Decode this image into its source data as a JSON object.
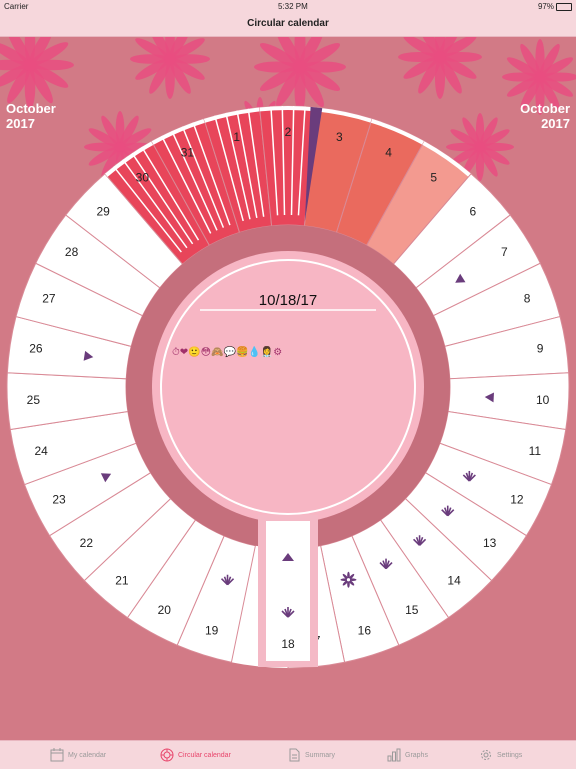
{
  "status": {
    "carrier": "Carrier",
    "time": "5:32 PM",
    "battery": "97%"
  },
  "nav": {
    "title": "Circular calendar"
  },
  "month_left": {
    "month": "October",
    "year": "2017"
  },
  "month_right": {
    "month": "October",
    "year": "2017"
  },
  "center": {
    "date": "10/18/17",
    "emojis": "⏱❤🙂😳🙈💬🍔💧👩‍⚕️⚙"
  },
  "colors": {
    "background": "#d27a86",
    "ring_dark": "#c56f7c",
    "center_fill": "#f7b6c4",
    "period_red": "#e8455a",
    "period_coral": "#ea6a5e",
    "period_salmon": "#f39a90",
    "accent_purple": "#6a3c7c",
    "selected_border": "#f4b9c6"
  },
  "days": [
    {
      "label": "3",
      "style": "coral"
    },
    {
      "label": "4",
      "style": "coral"
    },
    {
      "label": "5",
      "style": "salmon"
    },
    {
      "label": "6",
      "style": "white"
    },
    {
      "label": "7",
      "style": "white",
      "marker": "triangle"
    },
    {
      "label": "8",
      "style": "white"
    },
    {
      "label": "9",
      "style": "white"
    },
    {
      "label": "10",
      "style": "white",
      "marker": "triangle"
    },
    {
      "label": "11",
      "style": "white"
    },
    {
      "label": "12",
      "style": "white",
      "marker": "sprout"
    },
    {
      "label": "13",
      "style": "white",
      "marker": "sprout"
    },
    {
      "label": "14",
      "style": "white",
      "marker": "sprout"
    },
    {
      "label": "15",
      "style": "white",
      "marker": "sprout"
    },
    {
      "label": "16",
      "style": "white",
      "marker": "flower"
    },
    {
      "label": "17",
      "style": "white",
      "marker": "sprout"
    },
    {
      "label": "18",
      "style": "selected",
      "marker": "triangle"
    },
    {
      "label": "19",
      "style": "white",
      "marker": "sprout"
    },
    {
      "label": "20",
      "style": "white"
    },
    {
      "label": "21",
      "style": "white"
    },
    {
      "label": "22",
      "style": "white"
    },
    {
      "label": "23",
      "style": "white",
      "marker": "triangle"
    },
    {
      "label": "24",
      "style": "white"
    },
    {
      "label": "25",
      "style": "white"
    },
    {
      "label": "26",
      "style": "white",
      "marker": "triangle"
    },
    {
      "label": "27",
      "style": "white"
    },
    {
      "label": "28",
      "style": "white"
    },
    {
      "label": "29",
      "style": "white"
    },
    {
      "label": "30",
      "style": "striped"
    },
    {
      "label": "31",
      "style": "striped"
    },
    {
      "label": "1",
      "style": "striped"
    },
    {
      "label": "2",
      "style": "striped"
    }
  ],
  "tabs": [
    {
      "label": "My calendar",
      "icon": "calendar-icon"
    },
    {
      "label": "Circular calendar",
      "icon": "circle-calendar-icon",
      "active": true
    },
    {
      "label": "Summary",
      "icon": "document-icon"
    },
    {
      "label": "Graphs",
      "icon": "bar-chart-icon"
    },
    {
      "label": "Settings",
      "icon": "gear-icon"
    }
  ]
}
